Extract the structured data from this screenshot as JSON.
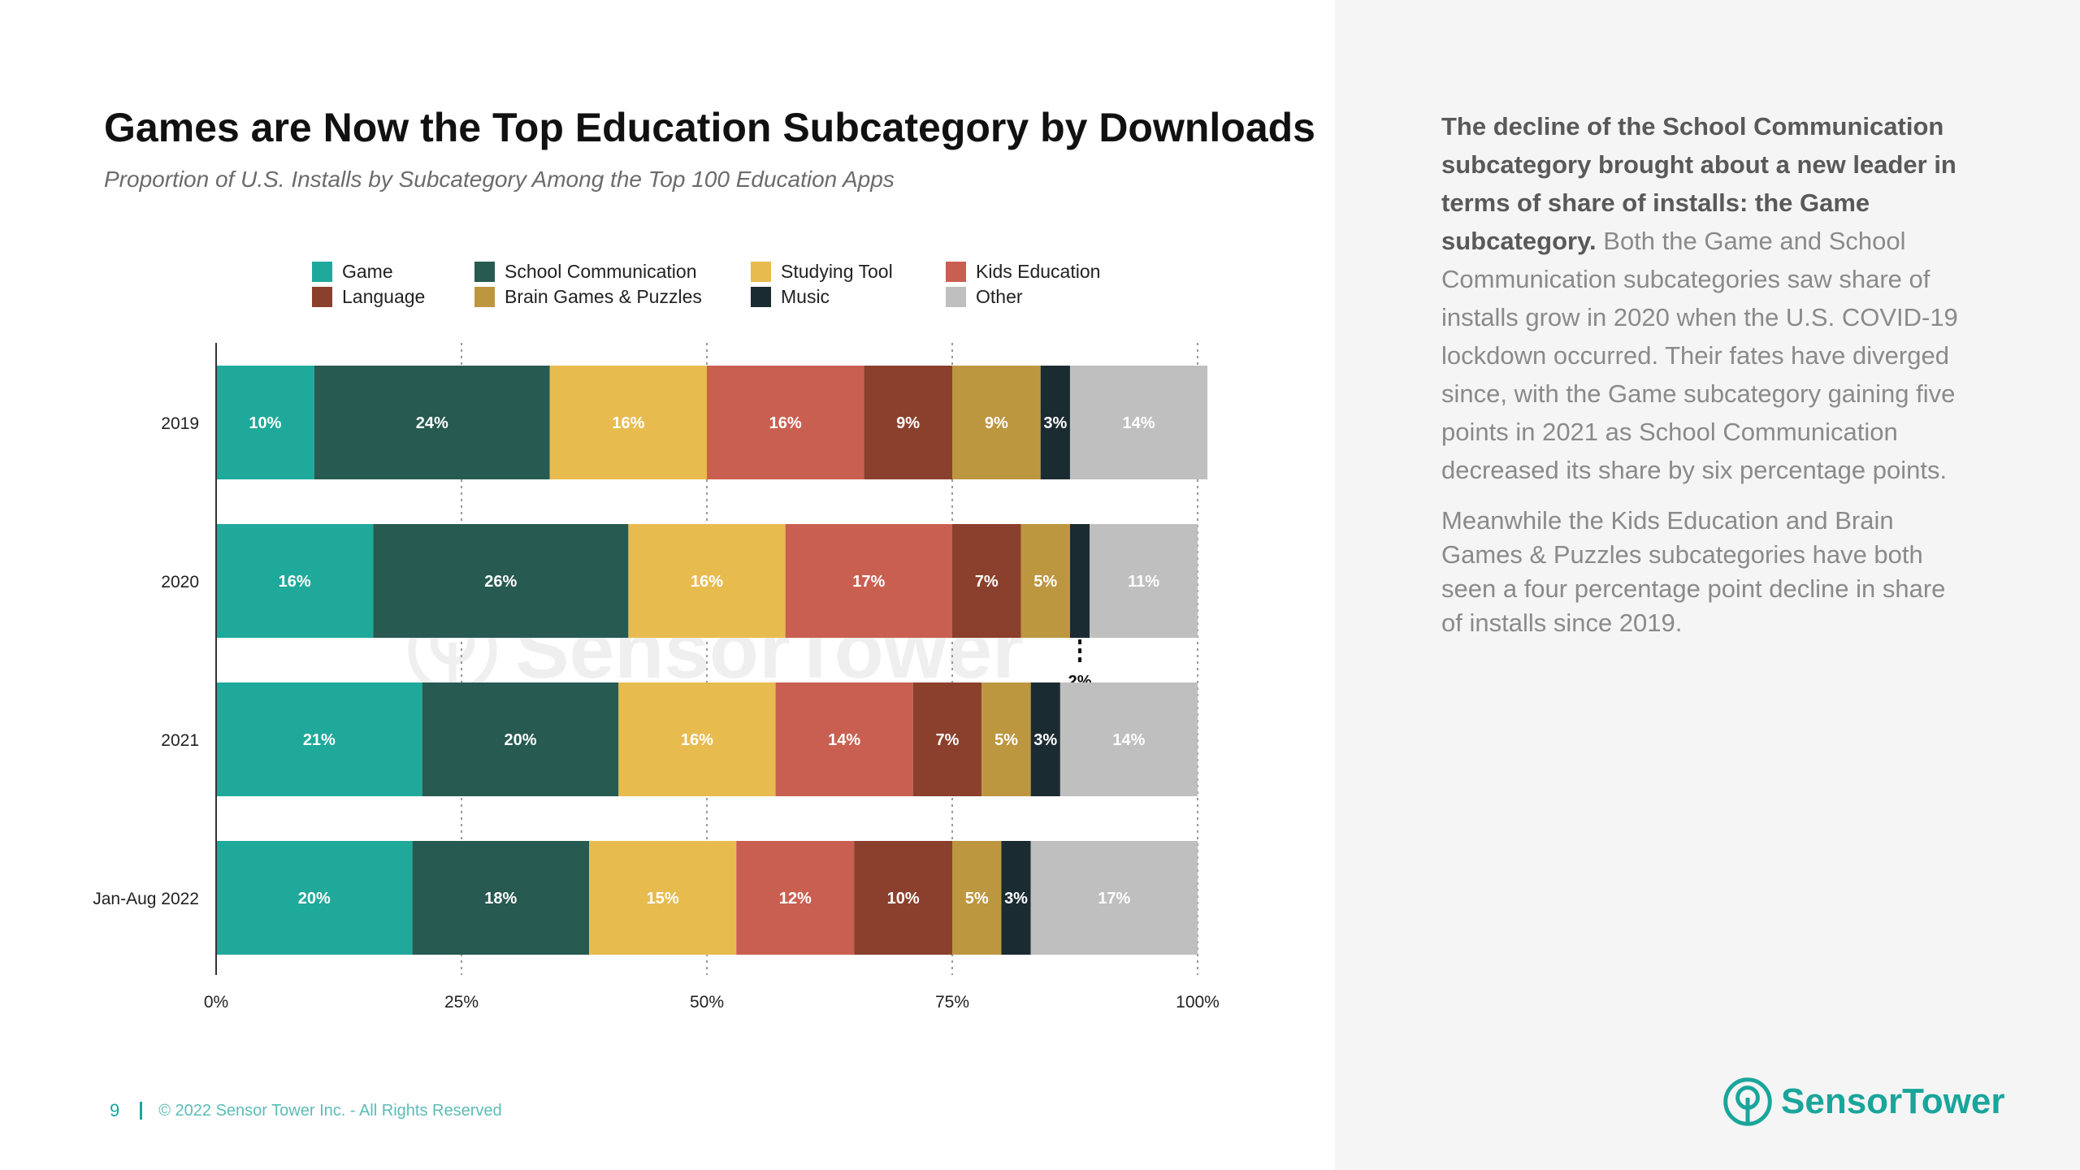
{
  "header": {
    "title": "Games are Now the Top Education Subcategory by Downloads",
    "subtitle": "Proportion of U.S. Installs by Subcategory Among the Top 100 Education Apps"
  },
  "colors": {
    "Game": "#1ea99b",
    "School Communication": "#275a50",
    "Studying Tool": "#e8bb4f",
    "Kids Education": "#c95f50",
    "Language": "#8a402c",
    "Brain Games & Puzzles": "#bd9640",
    "Music": "#1b2b32",
    "Other": "#bfbfbf",
    "brand": "#1aa59b"
  },
  "chart_data": {
    "type": "bar",
    "orientation": "horizontal",
    "stacked": true,
    "categories": [
      "2019",
      "2020",
      "2021",
      "Jan-Aug 2022"
    ],
    "series": [
      {
        "name": "Game",
        "values": [
          10,
          16,
          21,
          20
        ],
        "labels": [
          "10%",
          "16%",
          "21%",
          "20%"
        ]
      },
      {
        "name": "School Communication",
        "values": [
          24,
          26,
          20,
          18
        ],
        "labels": [
          "24%",
          "26%",
          "20%",
          "18%"
        ]
      },
      {
        "name": "Studying Tool",
        "values": [
          16,
          16,
          16,
          15
        ],
        "labels": [
          "16%",
          "16%",
          "16%",
          "15%"
        ]
      },
      {
        "name": "Kids Education",
        "values": [
          16,
          17,
          14,
          12
        ],
        "labels": [
          "16%",
          "17%",
          "14%",
          "12%"
        ]
      },
      {
        "name": "Language",
        "values": [
          9,
          7,
          7,
          10
        ],
        "labels": [
          "9%",
          "7%",
          "7%",
          "10%"
        ]
      },
      {
        "name": "Brain Games & Puzzles",
        "values": [
          9,
          5,
          5,
          5
        ],
        "labels": [
          "9%",
          "5%",
          "5%",
          "5%"
        ]
      },
      {
        "name": "Music",
        "values": [
          3,
          2,
          3,
          3
        ],
        "labels": [
          "3%",
          "2%",
          "3%",
          "3%"
        ]
      },
      {
        "name": "Other",
        "values": [
          14,
          11,
          14,
          17
        ],
        "labels": [
          "14%",
          "11%",
          "14%",
          "17%"
        ]
      }
    ],
    "xlim": [
      0,
      100
    ],
    "xticks": [
      "0%",
      "25%",
      "50%",
      "75%",
      "100%"
    ],
    "grid": "vertical dotted",
    "legend": "top"
  },
  "panel": {
    "lead": "The decline of the School Communication subcategory brought about a new leader in terms of share of installs: the Game subcategory.",
    "body": " Both the Game and School Communication subcategories saw share of installs grow in 2020 when the U.S. COVID-19 lockdown occurred. Their fates have diverged since, with the Game subcategory gaining five points in 2021 as School Communication decreased its share by six percentage points.",
    "para2": "Meanwhile the Kids Education and Brain Games & Puzzles subcategories have both seen a four percentage point decline in share of installs since 2019."
  },
  "footer": {
    "page": "9",
    "copyright": "© 2022 Sensor Tower Inc. - All Rights Reserved"
  },
  "brand": {
    "name": "SensorTower",
    "icon": "sensor-tower-logo-icon"
  }
}
